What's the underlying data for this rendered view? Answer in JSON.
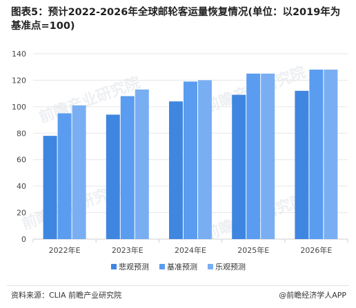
{
  "title": "图表5：预计2022-2026年全球邮轮客运量恢复情况(单位：以2019年为基准点=100)",
  "source": "资料来源：CLIA 前瞻产业研究院",
  "brand": "@前瞻经济学人APP",
  "watermark": "前瞻产业研究院",
  "colors": {
    "pessimistic": "#3f86e0",
    "baseline": "#5a9cf0",
    "optimistic": "#79aef3",
    "grid": "#e6e6e6",
    "axis": "#cfcfcf"
  },
  "chart_data": {
    "type": "bar",
    "title": "图表5：预计2022-2026年全球邮轮客运量恢复情况(单位：以2019年为基准点=100)",
    "xlabel": "",
    "ylabel": "",
    "ylim": [
      0,
      140
    ],
    "yticks": [
      0,
      20,
      40,
      60,
      80,
      100,
      120,
      140
    ],
    "grid": true,
    "legend_position": "bottom",
    "categories": [
      "2022年E",
      "2023年E",
      "2024年E",
      "2025年E",
      "2026年E"
    ],
    "series": [
      {
        "name": "悲观预测",
        "values": [
          78,
          94,
          104,
          109,
          112
        ]
      },
      {
        "name": "基准预测",
        "values": [
          95,
          108,
          119,
          125,
          128
        ]
      },
      {
        "name": "乐观预测",
        "values": [
          101,
          113,
          120,
          125,
          128
        ]
      }
    ]
  }
}
